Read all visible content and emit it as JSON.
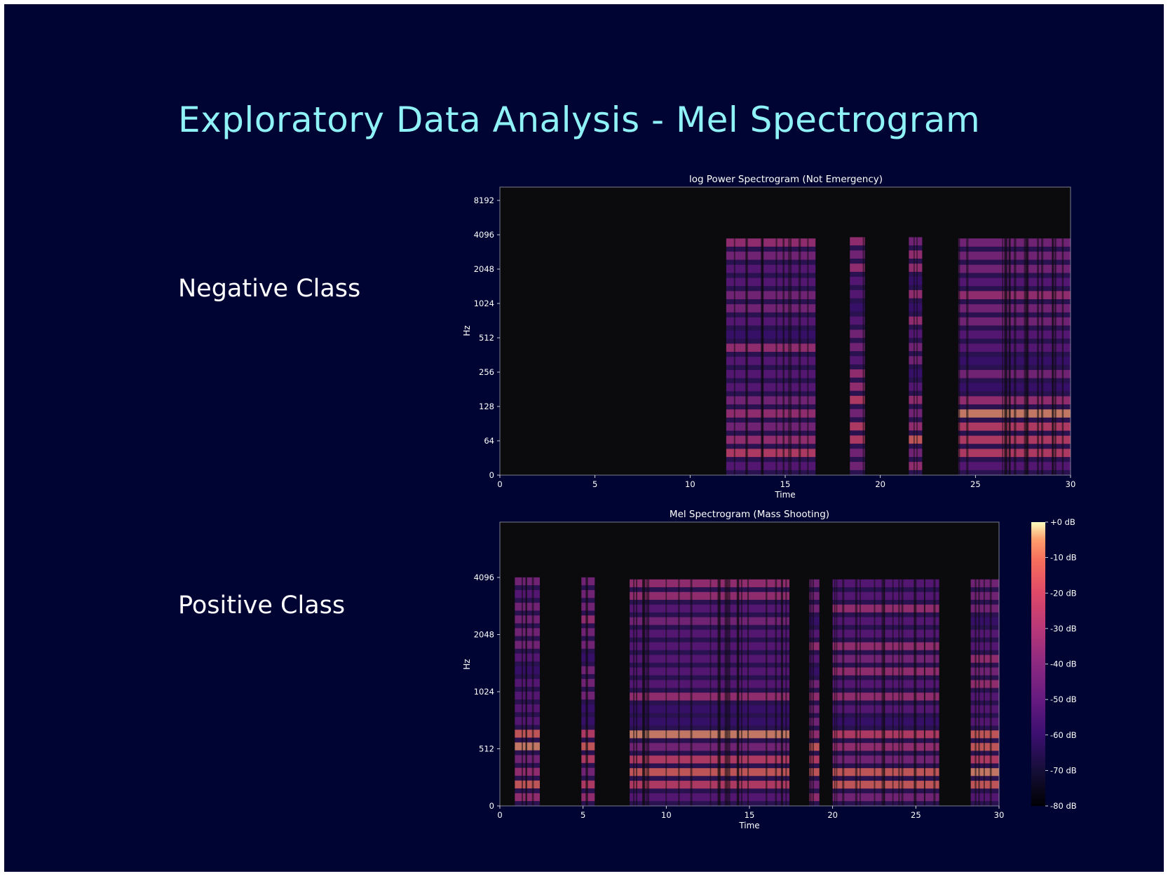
{
  "page": {
    "title": "Exploratory Data Analysis - Mel Spectrogram",
    "negative_label": "Negative Class",
    "positive_label": "Positive Class"
  },
  "colors": {
    "background": "#000433",
    "title": "#8ff2f7",
    "label": "#ffffff",
    "colormap": "magma"
  },
  "chart_data": [
    {
      "type": "heatmap",
      "title": "log Power Spectrogram (Not Emergency)",
      "xlabel": "Time",
      "ylabel": "Hz",
      "xlim": [
        0,
        30
      ],
      "x_ticks": [
        "0",
        "5",
        "10",
        "15",
        "20",
        "25",
        "30"
      ],
      "y_scale": "log",
      "y_ticks": [
        "0",
        "64",
        "128",
        "256",
        "512",
        "1024",
        "2048",
        "4096",
        "8192"
      ],
      "value_unit": "dB",
      "value_range": [
        -80,
        0
      ],
      "active_segments": [
        {
          "start": 11.9,
          "end": 16.6,
          "max_hz": 3800
        },
        {
          "start": 18.4,
          "end": 19.2,
          "max_hz": 3900
        },
        {
          "start": 21.5,
          "end": 22.2,
          "max_hz": 3900
        },
        {
          "start": 24.1,
          "end": 30.0,
          "max_hz": 3800
        }
      ]
    },
    {
      "type": "heatmap",
      "title": "Mel Spectrogram (Mass Shooting)",
      "xlabel": "Time",
      "ylabel": "Hz",
      "xlim": [
        0,
        30
      ],
      "x_ticks": [
        "0",
        "5",
        "10",
        "15",
        "20",
        "25",
        "30"
      ],
      "y_scale": "mel",
      "y_ticks": [
        "0",
        "512",
        "1024",
        "2048",
        "4096"
      ],
      "value_unit": "dB",
      "value_range": [
        -80,
        0
      ],
      "colorbar_ticks": [
        "+0 dB",
        "-10 dB",
        "-20 dB",
        "-30 dB",
        "-40 dB",
        "-50 dB",
        "-60 dB",
        "-70 dB",
        "-80 dB"
      ],
      "active_segments": [
        {
          "start": 0.9,
          "end": 2.4,
          "max_hz": 4100
        },
        {
          "start": 4.9,
          "end": 5.7,
          "max_hz": 4100
        },
        {
          "start": 7.8,
          "end": 17.4,
          "max_hz": 4000
        },
        {
          "start": 18.6,
          "end": 19.2,
          "max_hz": 4000
        },
        {
          "start": 20.0,
          "end": 26.4,
          "max_hz": 4000
        },
        {
          "start": 28.3,
          "end": 30.0,
          "max_hz": 4000
        }
      ]
    }
  ]
}
